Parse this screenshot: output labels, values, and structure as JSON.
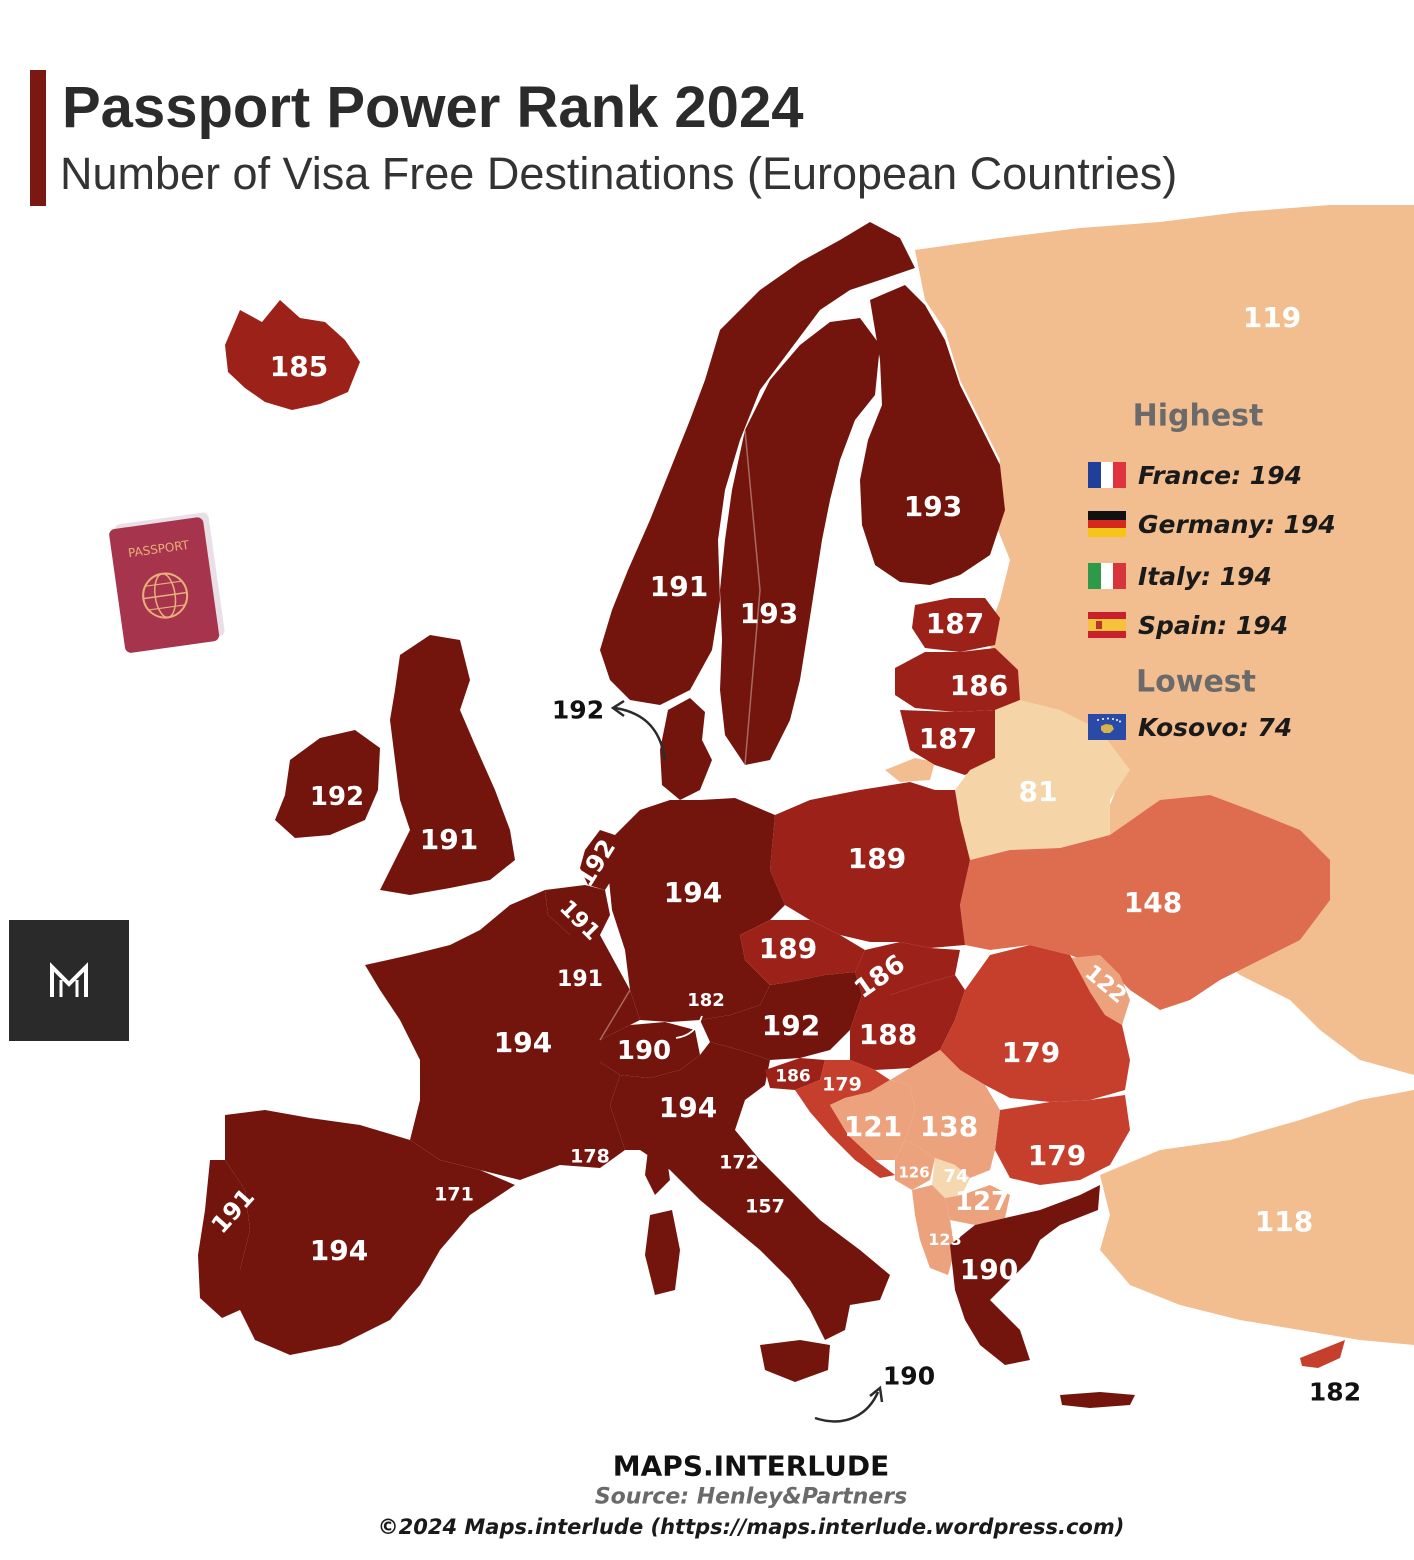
{
  "header": {
    "title": "Passport Power Rank 2024",
    "subtitle": "Number of Visa Free Destinations (European Countries)"
  },
  "colors": {
    "top": "#74150d",
    "high": "#9c2118",
    "mid": "#c63f2d",
    "ukraine": "#de6d50",
    "balkans": "#eca27c",
    "russia": "#f2bd8f",
    "belarus": "#f5d5a8",
    "kosovo": "#f5d8b0",
    "accent_bar": "#7a1812"
  },
  "regions": [
    {
      "id": "iceland",
      "label": "185"
    },
    {
      "id": "norway",
      "label": "191"
    },
    {
      "id": "sweden",
      "label": "193"
    },
    {
      "id": "finland",
      "label": "193"
    },
    {
      "id": "denmark",
      "label": "192"
    },
    {
      "id": "estonia",
      "label": "187"
    },
    {
      "id": "latvia",
      "label": "186"
    },
    {
      "id": "lithuania",
      "label": "187"
    },
    {
      "id": "ireland",
      "label": "192"
    },
    {
      "id": "united-kingdom",
      "label": "191"
    },
    {
      "id": "netherlands",
      "label": "192"
    },
    {
      "id": "belgium",
      "label": "191"
    },
    {
      "id": "luxembourg",
      "label": "191"
    },
    {
      "id": "germany",
      "label": "194"
    },
    {
      "id": "liechtenstein",
      "label": "182"
    },
    {
      "id": "poland",
      "label": "189"
    },
    {
      "id": "czechia",
      "label": "189"
    },
    {
      "id": "slovakia",
      "label": "186"
    },
    {
      "id": "austria",
      "label": "192"
    },
    {
      "id": "hungary",
      "label": "188"
    },
    {
      "id": "switzerland",
      "label": "190"
    },
    {
      "id": "france",
      "label": "194"
    },
    {
      "id": "italy",
      "label": "194"
    },
    {
      "id": "slovenia",
      "label": "186"
    },
    {
      "id": "croatia",
      "label": "179"
    },
    {
      "id": "bosnia",
      "label": "121"
    },
    {
      "id": "serbia",
      "label": "138"
    },
    {
      "id": "montenegro",
      "label": "126"
    },
    {
      "id": "kosovo",
      "label": "74"
    },
    {
      "id": "north-macedonia",
      "label": "127"
    },
    {
      "id": "albania",
      "label": "123"
    },
    {
      "id": "romania",
      "label": "179"
    },
    {
      "id": "moldova",
      "label": "122"
    },
    {
      "id": "bulgaria",
      "label": "179"
    },
    {
      "id": "greece",
      "label": "190"
    },
    {
      "id": "turkey",
      "label": "118"
    },
    {
      "id": "russia",
      "label": "119"
    },
    {
      "id": "belarus",
      "label": "81"
    },
    {
      "id": "ukraine",
      "label": "148"
    },
    {
      "id": "spain",
      "label": "194"
    },
    {
      "id": "portugal",
      "label": "191"
    },
    {
      "id": "monaco",
      "label": "178"
    },
    {
      "id": "andorra",
      "label": "171"
    },
    {
      "id": "san-marino",
      "label": "172"
    },
    {
      "id": "vatican",
      "label": "157"
    },
    {
      "id": "malta",
      "label": "190"
    },
    {
      "id": "cyprus",
      "label": "182"
    }
  ],
  "legend": {
    "highest_title": "Highest",
    "highest": [
      {
        "flag": "france-flag-icon",
        "text": "France: 194"
      },
      {
        "flag": "germany-flag-icon",
        "text": "Germany: 194"
      },
      {
        "flag": "italy-flag-icon",
        "text": "Italy: 194"
      },
      {
        "flag": "spain-flag-icon",
        "text": "Spain: 194"
      }
    ],
    "lowest_title": "Lowest",
    "lowest": [
      {
        "flag": "kosovo-flag-icon",
        "text": "Kosovo: 74"
      }
    ]
  },
  "decor": {
    "passport_text": "PASSPORT"
  },
  "footer": {
    "brand": "MAPS.INTERLUDE",
    "source": "Source: Henley&Partners",
    "copyright": "©2024 Maps.interlude (https://maps.interlude.wordpress.com)"
  }
}
